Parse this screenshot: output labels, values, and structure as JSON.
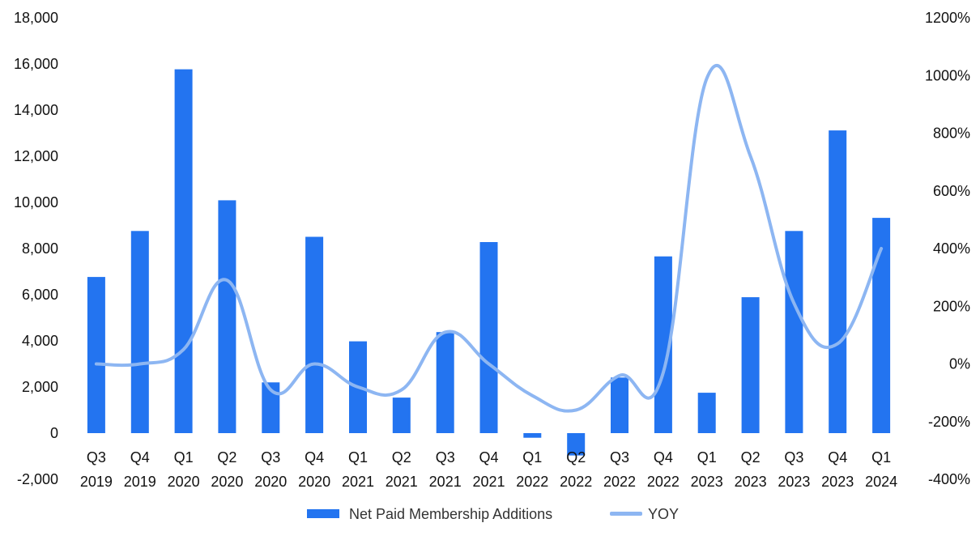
{
  "chart_data": {
    "type": "bar",
    "title": "",
    "xlabel": "",
    "ylabel": "",
    "categories": [
      [
        "Q3",
        "2019"
      ],
      [
        "Q4",
        "2019"
      ],
      [
        "Q1",
        "2020"
      ],
      [
        "Q2",
        "2020"
      ],
      [
        "Q3",
        "2020"
      ],
      [
        "Q4",
        "2020"
      ],
      [
        "Q1",
        "2021"
      ],
      [
        "Q2",
        "2021"
      ],
      [
        "Q3",
        "2021"
      ],
      [
        "Q4",
        "2021"
      ],
      [
        "Q1",
        "2022"
      ],
      [
        "Q2",
        "2022"
      ],
      [
        "Q3",
        "2022"
      ],
      [
        "Q4",
        "2022"
      ],
      [
        "Q1",
        "2023"
      ],
      [
        "Q2",
        "2023"
      ],
      [
        "Q3",
        "2023"
      ],
      [
        "Q4",
        "2023"
      ],
      [
        "Q1",
        "2024"
      ]
    ],
    "ylim": [
      -2000,
      18000
    ],
    "y_ticks": [
      "18,000",
      "16,000",
      "14,000",
      "12,000",
      "10,000",
      "8,000",
      "6,000",
      "4,000",
      "2,000",
      "0",
      "-2,000"
    ],
    "y_tick_values": [
      18000,
      16000,
      14000,
      12000,
      10000,
      8000,
      6000,
      4000,
      2000,
      0,
      -2000
    ],
    "y2lim": [
      -400,
      1200
    ],
    "y2_ticks": [
      "1200%",
      "1000%",
      "800%",
      "600%",
      "400%",
      "200%",
      "0%",
      "-200%",
      "-400%"
    ],
    "y2_tick_values": [
      1200,
      1000,
      800,
      600,
      400,
      200,
      0,
      -200,
      -400
    ],
    "grid": false,
    "legend_position": "bottom-center",
    "series": [
      {
        "name": "Net Paid Membership Additions",
        "type": "bar",
        "axis": "left",
        "color": "#2374f0",
        "values": [
          6770,
          8760,
          15770,
          10090,
          2200,
          8510,
          3980,
          1540,
          4380,
          8280,
          -200,
          -970,
          2410,
          7660,
          1750,
          5890,
          8760,
          13120,
          9330
        ]
      },
      {
        "name": "YOY",
        "type": "line",
        "axis": "right",
        "color": "#8db6f2",
        "values": [
          0,
          0,
          50,
          290,
          -90,
          0,
          -80,
          -90,
          110,
          0,
          -110,
          -160,
          -40,
          -30,
          990,
          720,
          210,
          70,
          400
        ]
      }
    ]
  }
}
